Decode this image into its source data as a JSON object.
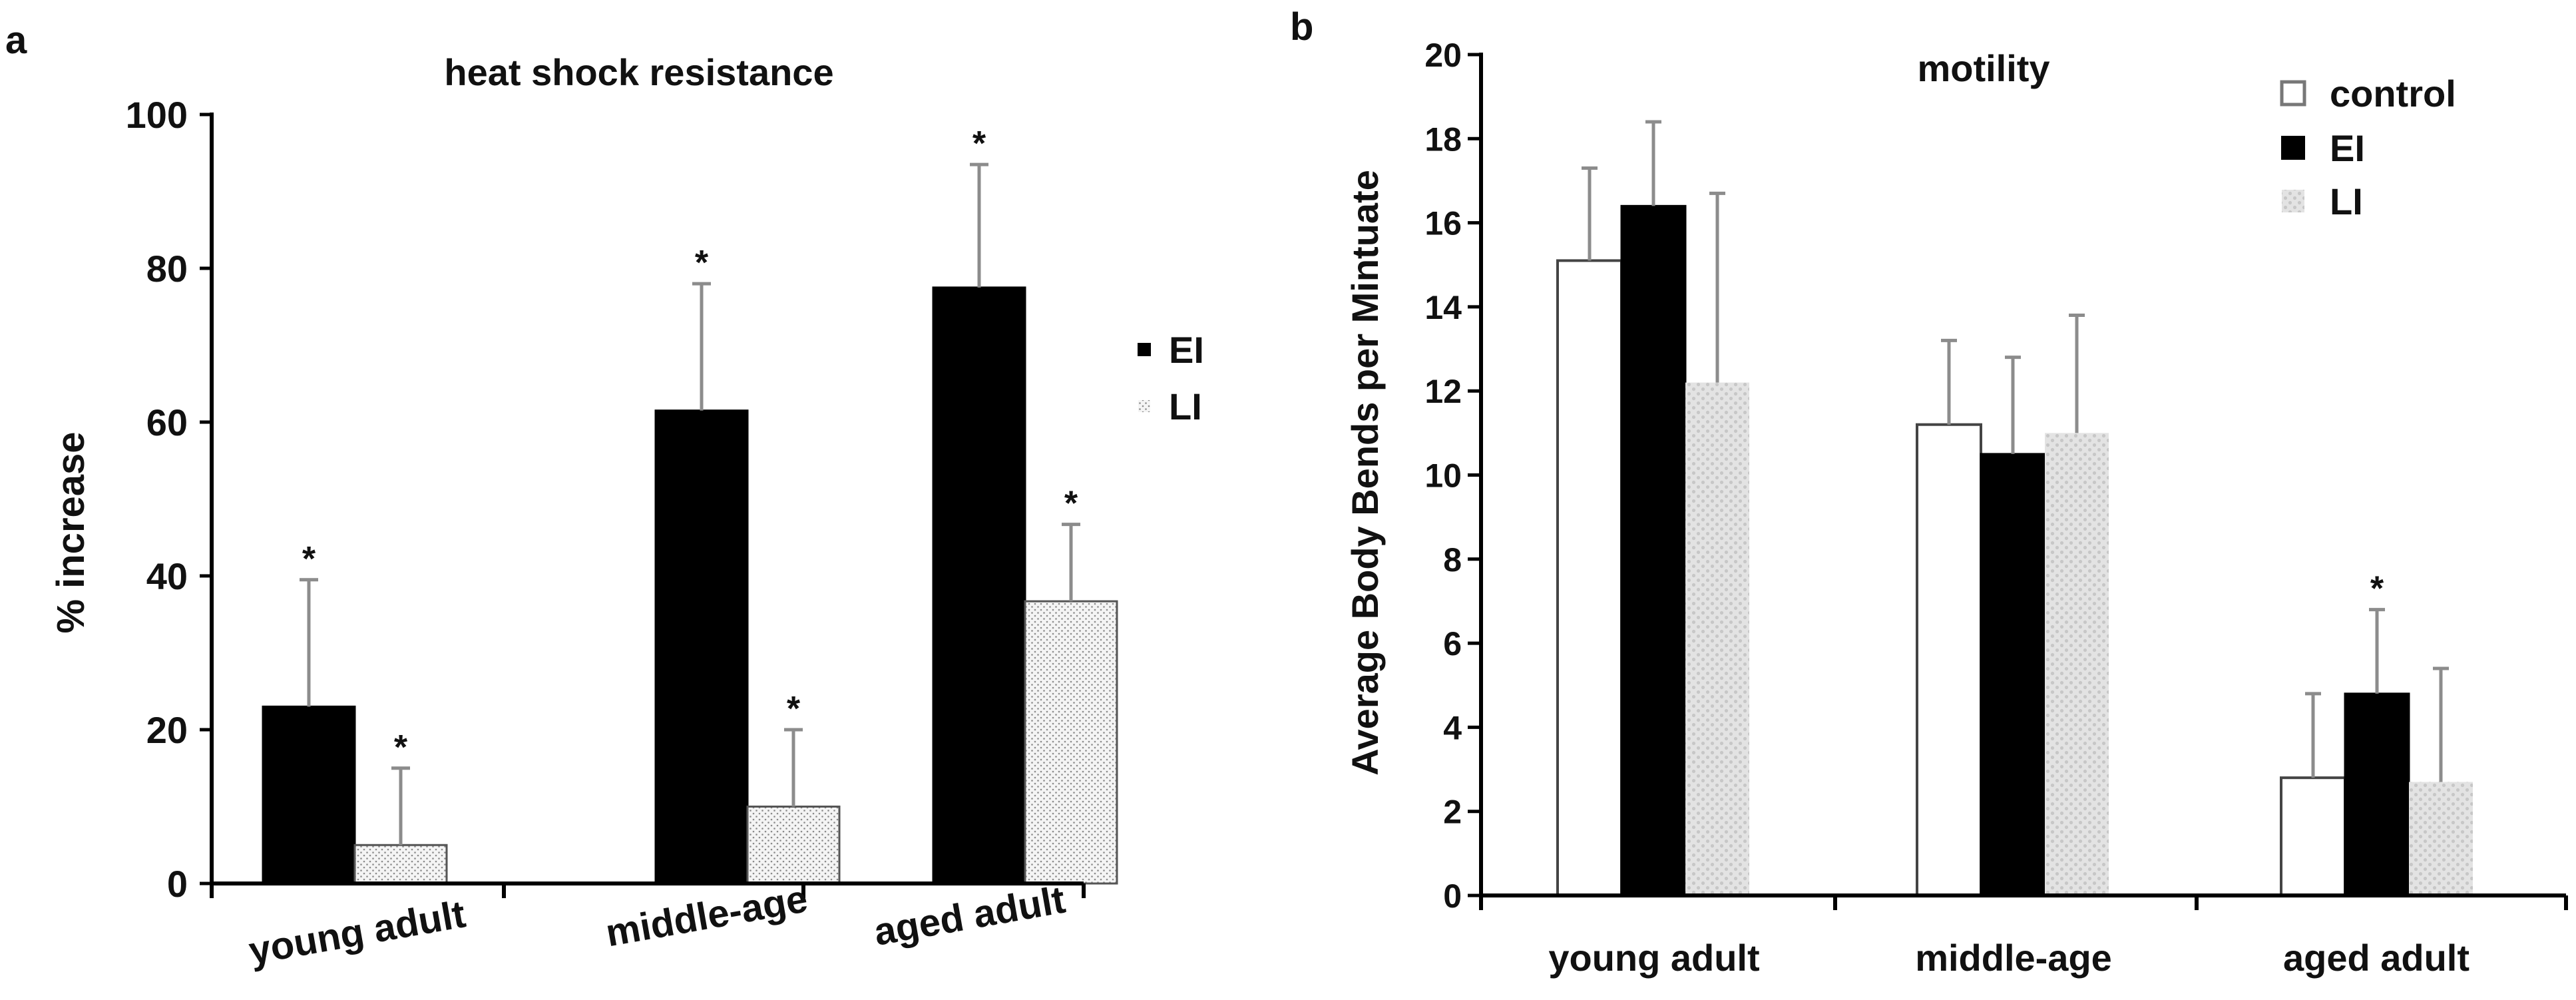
{
  "panels": {
    "a": {
      "label": "a"
    },
    "b": {
      "label": "b"
    }
  },
  "colors": {
    "EI": "#000000",
    "LI": "#e6e6e6",
    "control": "#ffffff",
    "axis": "#000000",
    "error_bar": "#8c8c8c"
  },
  "chart_data": [
    {
      "id": "a",
      "type": "bar",
      "title": "heat shock resistance",
      "xlabel": "",
      "ylabel": "% increase",
      "ylim": [
        0,
        100
      ],
      "yticks": [
        0,
        20,
        40,
        60,
        80,
        100
      ],
      "categories": [
        "young adult",
        "middle-age",
        "aged adult"
      ],
      "series": [
        {
          "name": "EI",
          "values": [
            23,
            61.5,
            77.5
          ],
          "errors": [
            16.5,
            16.5,
            16
          ],
          "significant": [
            true,
            true,
            true
          ]
        },
        {
          "name": "LI",
          "values": [
            5,
            10,
            36.7
          ],
          "errors": [
            10,
            10,
            10
          ],
          "significant": [
            true,
            true,
            true
          ]
        }
      ],
      "legend": {
        "position": "right",
        "entries": [
          "EI",
          "LI"
        ]
      },
      "grid": false
    },
    {
      "id": "b",
      "type": "bar",
      "title": "motility",
      "xlabel": "",
      "ylabel": "Average Body Bends per Mintuate",
      "ylim": [
        0,
        20
      ],
      "yticks": [
        0,
        2,
        4,
        6,
        8,
        10,
        12,
        14,
        16,
        18,
        20
      ],
      "categories": [
        "young adult",
        "middle-age",
        "aged adult"
      ],
      "series": [
        {
          "name": "control",
          "values": [
            15.1,
            11.2,
            2.8
          ],
          "errors": [
            2.2,
            2.0,
            2.0
          ],
          "significant": [
            false,
            false,
            false
          ]
        },
        {
          "name": "EI",
          "values": [
            16.4,
            10.5,
            4.8
          ],
          "errors": [
            2.0,
            2.3,
            2.0
          ],
          "significant": [
            false,
            false,
            true
          ]
        },
        {
          "name": "LI",
          "values": [
            12.2,
            11.0,
            2.7
          ],
          "errors": [
            4.5,
            2.8,
            2.7
          ],
          "significant": [
            false,
            false,
            false
          ]
        }
      ],
      "legend": {
        "position": "top-right",
        "entries": [
          "control",
          "EI",
          "LI"
        ]
      },
      "grid": false
    }
  ],
  "significance_marker": "*"
}
